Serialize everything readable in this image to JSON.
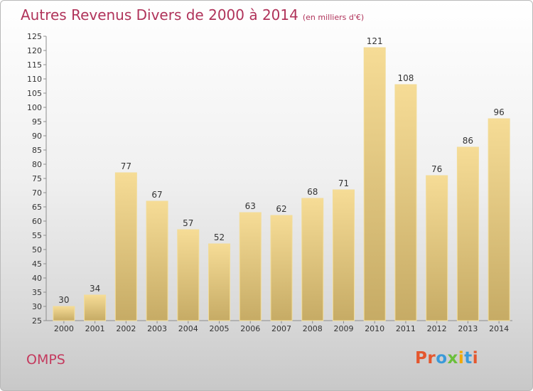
{
  "header": {
    "title": "Autres Revenus Divers de 2000 à 2014",
    "subtitle": "(en milliers d'€)"
  },
  "footer": {
    "place": "OMPS",
    "logo": "Proxiti"
  },
  "colors": {
    "title": "#b0335a",
    "bar_light": "#f6dc96",
    "bar_dark": "#c6ab65",
    "bar_border": "#f2dc98",
    "axis": "#8c8c8c",
    "logo": [
      "#e4572e",
      "#e4572e",
      "#3a9ad9",
      "#6bbf3b",
      "#f2a900",
      "#3a9ad9",
      "#e4572e"
    ]
  },
  "chart_data": {
    "type": "bar",
    "title": "Autres Revenus Divers de 2000 à 2014",
    "subtitle": "(en milliers d'€)",
    "categories": [
      "2000",
      "2001",
      "2002",
      "2003",
      "2004",
      "2005",
      "2006",
      "2007",
      "2008",
      "2009",
      "2010",
      "2011",
      "2012",
      "2013",
      "2014"
    ],
    "values": [
      30,
      34,
      77,
      67,
      57,
      52,
      63,
      62,
      68,
      71,
      121,
      108,
      76,
      86,
      96
    ],
    "ylim": [
      25,
      125
    ],
    "yticks": [
      25,
      30,
      35,
      40,
      45,
      50,
      55,
      60,
      65,
      70,
      75,
      80,
      85,
      90,
      95,
      100,
      105,
      110,
      115,
      120,
      125
    ],
    "grid": false,
    "data_labels": true
  }
}
